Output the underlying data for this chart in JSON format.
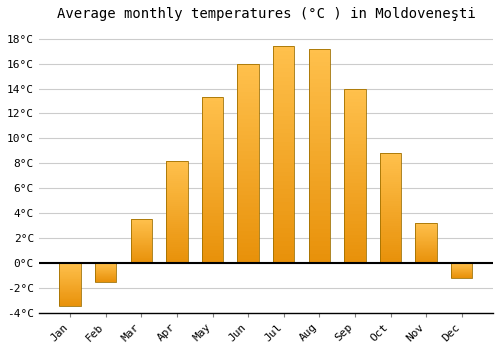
{
  "title": "Average monthly temperatures (°C ) in Moldoveneşti",
  "months": [
    "Jan",
    "Feb",
    "Mar",
    "Apr",
    "May",
    "Jun",
    "Jul",
    "Aug",
    "Sep",
    "Oct",
    "Nov",
    "Dec"
  ],
  "values": [
    -3.5,
    -1.5,
    3.5,
    8.2,
    13.3,
    16.0,
    17.4,
    17.2,
    14.0,
    8.8,
    3.2,
    -1.2
  ],
  "bar_color_top": "#FFC14D",
  "bar_color_bottom": "#E8910A",
  "bar_edge_color": "#A07000",
  "background_color": "#FFFFFF",
  "grid_color": "#CCCCCC",
  "ylim": [
    -4,
    19
  ],
  "ytick_step": 2,
  "title_fontsize": 10,
  "tick_fontsize": 8,
  "font_family": "monospace"
}
